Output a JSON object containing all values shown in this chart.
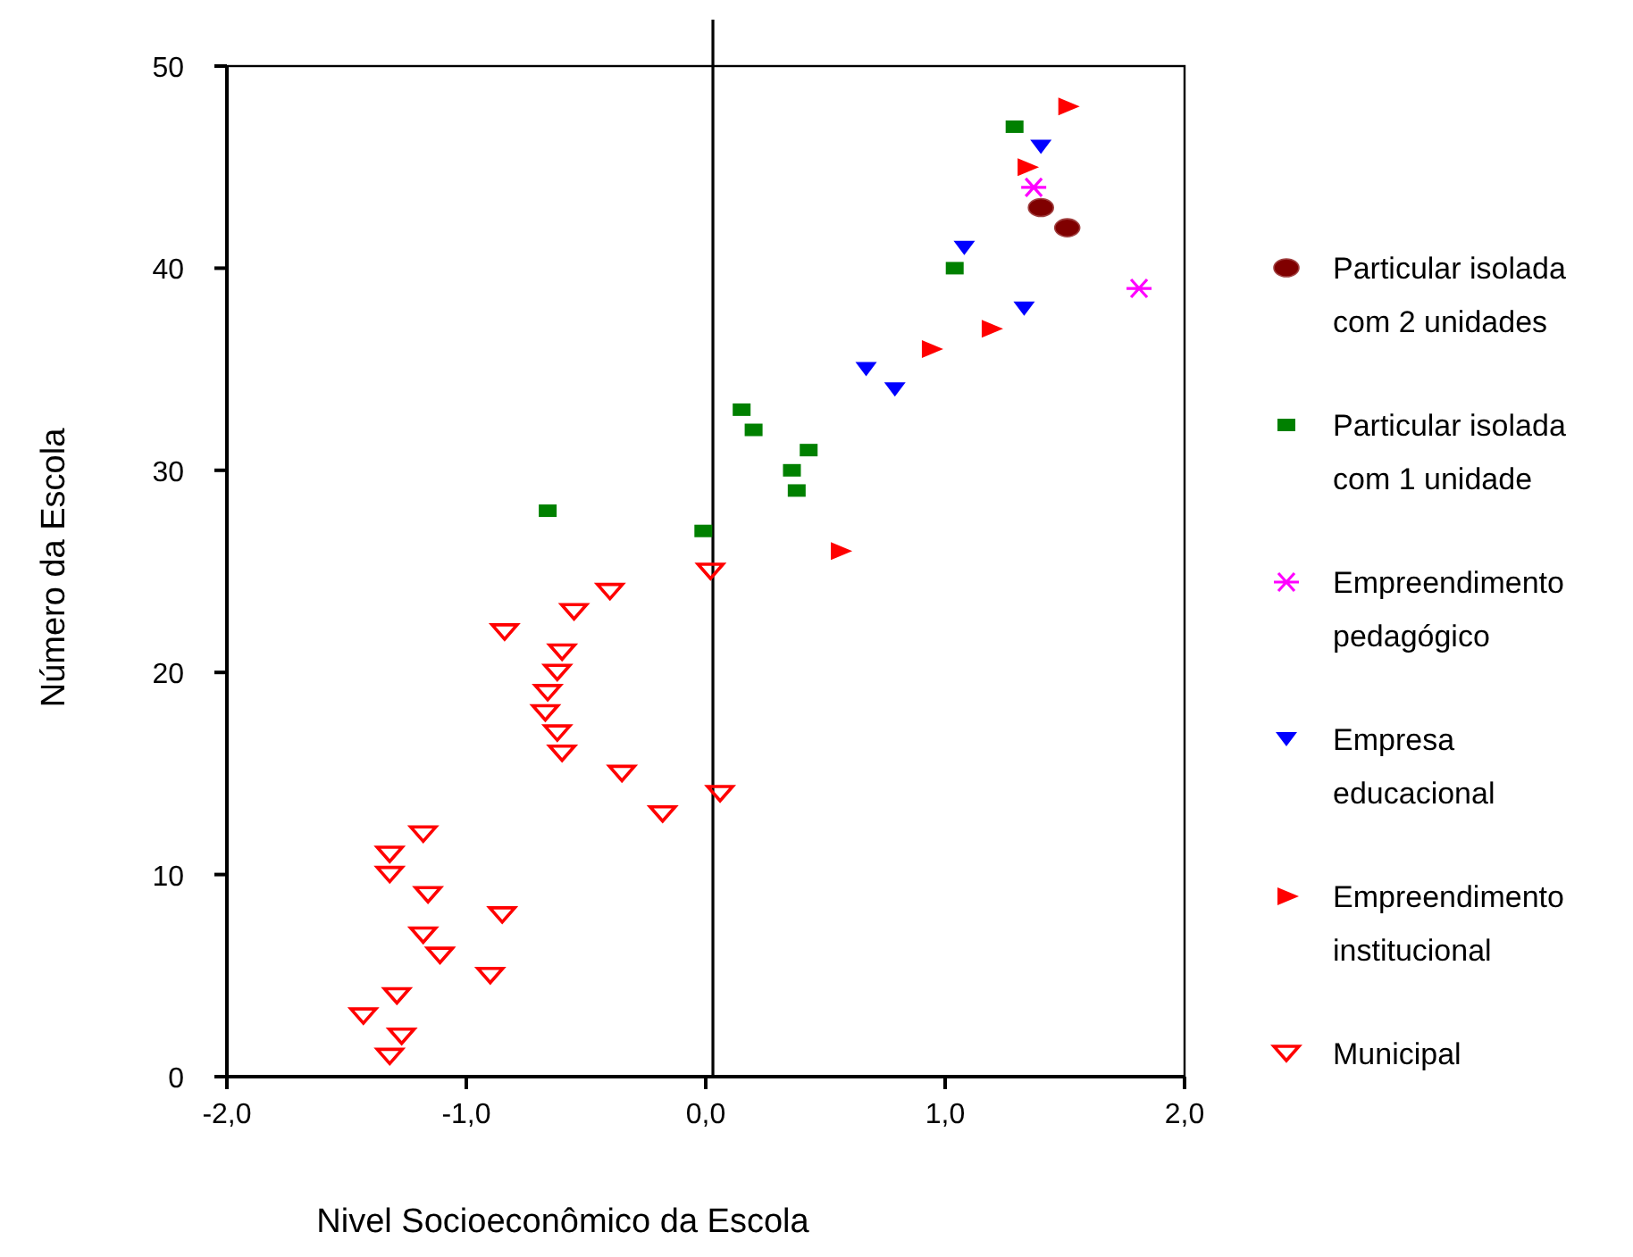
{
  "chart_data": {
    "type": "scatter",
    "xlabel": "Nivel Socioeconômico da Escola",
    "ylabel": "Número da Escola",
    "xlim": [
      -2,
      2
    ],
    "xticks": [
      {
        "value": -2,
        "label": "-2,0"
      },
      {
        "value": -1,
        "label": "-1,0"
      },
      {
        "value": 0,
        "label": "0,0"
      },
      {
        "value": 1,
        "label": "1,0"
      },
      {
        "value": 2,
        "label": "2,0"
      }
    ],
    "ylim": [
      0,
      50
    ],
    "yticks": [
      0,
      10,
      20,
      30,
      40,
      50
    ],
    "grid": false,
    "legend": "right",
    "ref_lines": [
      {
        "axis": "x",
        "value": 0.03
      }
    ],
    "series": [
      {
        "name": "Particular isolada com 2 unidades",
        "color": "#800000",
        "marker": "circle",
        "x": [
          1.4,
          1.51
        ],
        "values": [
          43,
          42
        ]
      },
      {
        "name": "Particular isolada com 1 unidade",
        "color": "#008000",
        "marker": "square",
        "x": [
          -0.66,
          -0.01,
          0.15,
          0.2,
          0.43,
          0.36,
          0.38,
          1.04,
          1.29
        ],
        "values": [
          28,
          27,
          33,
          32,
          31,
          30,
          29,
          40,
          47
        ]
      },
      {
        "name": "Empreendimento pedagógico",
        "color": "#ff00ff",
        "marker": "cross",
        "x": [
          1.37,
          1.81
        ],
        "values": [
          44,
          39
        ]
      },
      {
        "name": "Empresa educacional",
        "color": "#0000ff",
        "marker": "triangle-down",
        "x": [
          1.4,
          1.08,
          1.33,
          0.67,
          0.79
        ],
        "values": [
          46,
          41,
          38,
          35,
          34
        ]
      },
      {
        "name": "Empreendimento institucional",
        "color": "#ff0000",
        "marker": "triangle-right",
        "x": [
          1.51,
          1.34,
          1.19,
          0.94,
          0.56
        ],
        "values": [
          48,
          45,
          37,
          36,
          26
        ]
      },
      {
        "name": "Municipal",
        "color": "#ff0000",
        "marker": "triangle-down-open",
        "x": [
          -1.32,
          -1.27,
          -1.43,
          -1.29,
          -0.9,
          -1.11,
          -1.18,
          -0.85,
          -1.16,
          -1.32,
          -1.32,
          -1.18,
          -0.18,
          0.06,
          -0.35,
          -0.6,
          -0.62,
          -0.67,
          -0.66,
          -0.62,
          -0.6,
          -0.84,
          -0.55,
          -0.4,
          0.02
        ],
        "values": [
          1,
          2,
          3,
          4,
          5,
          6,
          7,
          8,
          9,
          10,
          11,
          12,
          13,
          14,
          15,
          16,
          17,
          18,
          19,
          20,
          21,
          22,
          23,
          24,
          25
        ]
      }
    ]
  }
}
